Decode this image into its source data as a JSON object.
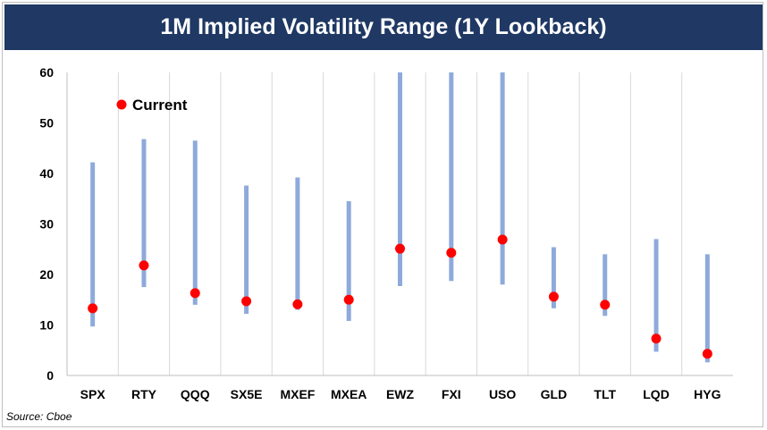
{
  "title": "1M Implied Volatility Range (1Y Lookback)",
  "source": "Source: Cboe",
  "chart_data": {
    "type": "range",
    "categories": [
      "SPX",
      "RTY",
      "QQQ",
      "SX5E",
      "MXEF",
      "MXEA",
      "EWZ",
      "FXI",
      "USO",
      "GLD",
      "TLT",
      "LQD",
      "HYG"
    ],
    "low": [
      9.7,
      17.5,
      14.0,
      12.2,
      13.0,
      10.8,
      17.7,
      18.7,
      18.0,
      13.3,
      11.8,
      4.7,
      2.6
    ],
    "high": [
      42.2,
      46.8,
      46.5,
      37.6,
      39.2,
      34.5,
      60,
      60,
      60,
      25.4,
      24.0,
      27.0,
      24.0
    ],
    "current": [
      13.3,
      21.8,
      16.3,
      14.7,
      14.1,
      15.0,
      25.1,
      24.3,
      26.9,
      15.6,
      14.0,
      7.3,
      4.3
    ],
    "legend": "Current",
    "legend_position": "top-left",
    "ylim": [
      0,
      60
    ],
    "yticks": [
      0,
      10,
      20,
      30,
      40,
      50,
      60
    ],
    "grid": "vertical",
    "colors": {
      "range": "#8eaadb",
      "current": "#ff0000",
      "title_bg": "#1f3864",
      "grid": "#d9d9d9"
    }
  }
}
